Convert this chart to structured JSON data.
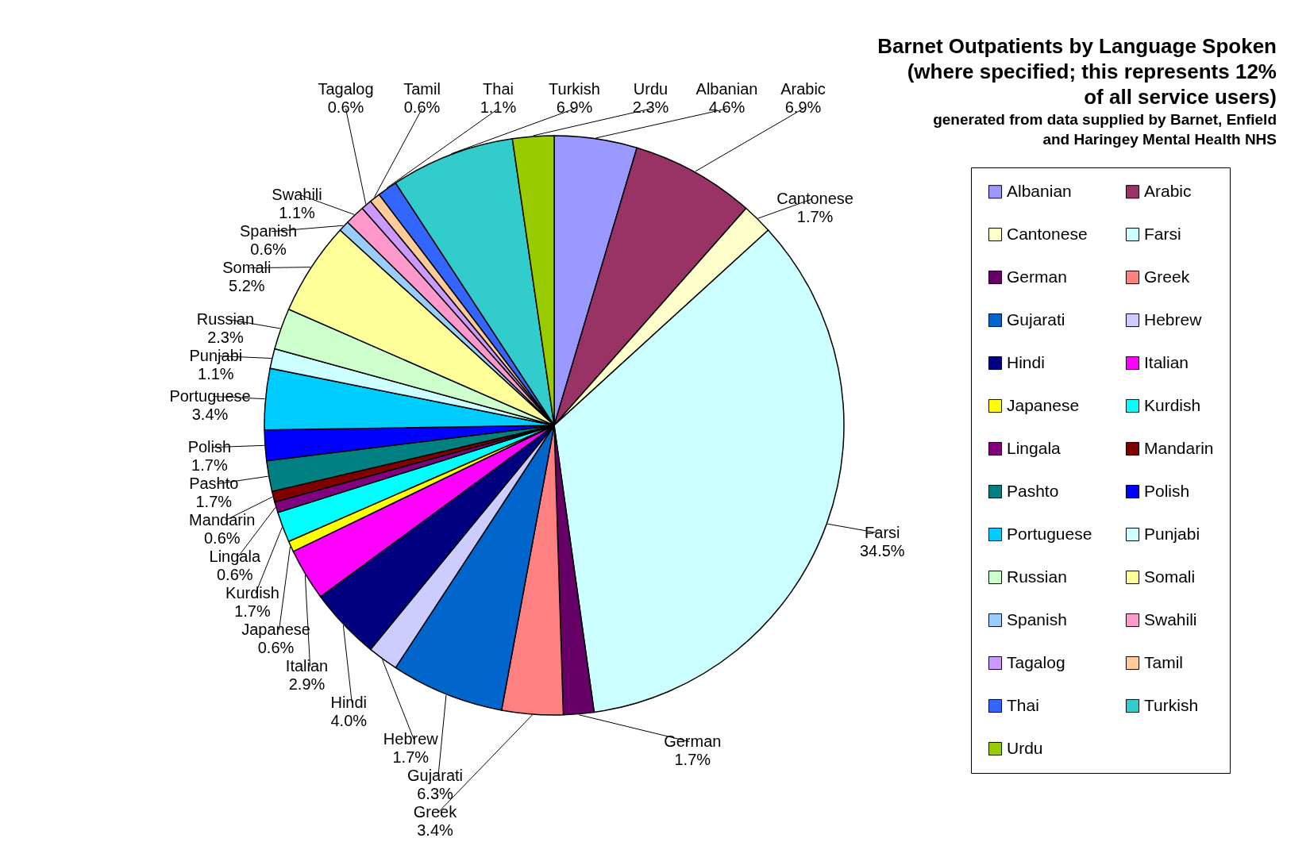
{
  "chart_data": {
    "type": "pie",
    "title": "Barnet Outpatients by Language Spoken (where specified; this represents 12% of all service users)",
    "subtitle": "generated from data supplied by Barnet, Enfield and Haringey Mental Health NHS",
    "categories": [
      "Albanian",
      "Arabic",
      "Cantonese",
      "Farsi",
      "German",
      "Greek",
      "Gujarati",
      "Hebrew",
      "Hindi",
      "Italian",
      "Japanese",
      "Kurdish",
      "Lingala",
      "Mandarin",
      "Pashto",
      "Polish",
      "Portuguese",
      "Punjabi",
      "Russian",
      "Somali",
      "Spanish",
      "Swahili",
      "Tagalog",
      "Tamil",
      "Thai",
      "Turkish",
      "Urdu"
    ],
    "values": [
      4.6,
      6.9,
      1.7,
      34.5,
      1.7,
      3.4,
      6.3,
      1.7,
      4.0,
      2.9,
      0.6,
      1.7,
      0.6,
      0.6,
      1.7,
      1.7,
      3.4,
      1.1,
      2.3,
      5.2,
      0.6,
      1.1,
      0.6,
      0.6,
      1.1,
      6.9,
      2.3
    ],
    "value_labels": [
      "4.6%",
      "6.9%",
      "1.7%",
      "34.5%",
      "1.7%",
      "3.4%",
      "6.3%",
      "1.7%",
      "4.0%",
      "2.9%",
      "0.6%",
      "1.7%",
      "0.6%",
      "0.6%",
      "1.7%",
      "1.7%",
      "3.4%",
      "1.1%",
      "2.3%",
      "5.2%",
      "0.6%",
      "1.1%",
      "0.6%",
      "0.6%",
      "1.1%",
      "6.9%",
      "2.3%"
    ],
    "colors": [
      "#9999ff",
      "#993366",
      "#ffffcc",
      "#ccffff",
      "#660066",
      "#ff8080",
      "#0066cc",
      "#ccccff",
      "#000080",
      "#ff00ff",
      "#ffff00",
      "#00ffff",
      "#800080",
      "#800000",
      "#008080",
      "#0000ff",
      "#00ccff",
      "#ccffff",
      "#ccffcc",
      "#ffff99",
      "#99ccff",
      "#ff99cc",
      "#cc99ff",
      "#ffcc99",
      "#3366ff",
      "#33cccc",
      "#99cc00"
    ],
    "legend": "right"
  }
}
